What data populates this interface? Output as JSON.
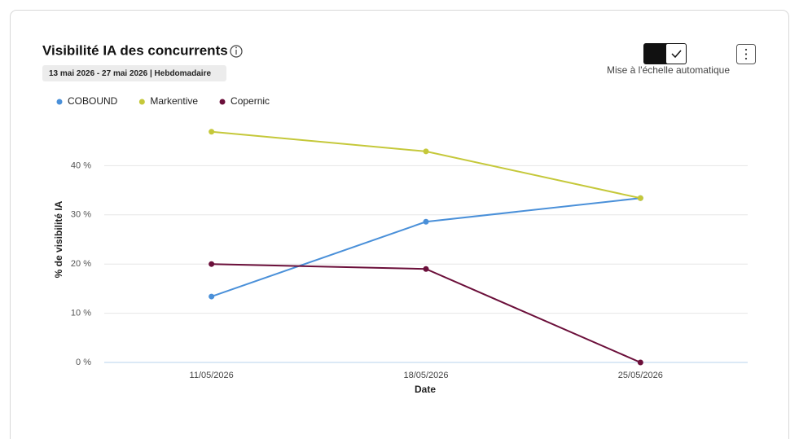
{
  "card": {
    "date_range": "13 mai 2026 - 27 mai 2026 | Hebdomadaire",
    "toggle_label": "Mise à l'échelle automatique"
  },
  "chart_data": {
    "type": "line",
    "title": "Visibilité IA des concurrents",
    "xlabel": "Date",
    "ylabel": "% de visibilité IA",
    "categories": [
      "11/05/2026",
      "18/05/2026",
      "25/05/2026"
    ],
    "series": [
      {
        "name": "COBOUND",
        "color": "#4a90d9",
        "values": [
          13.4,
          28.6,
          33.4
        ]
      },
      {
        "name": "Markentive",
        "color": "#c5c83a",
        "values": [
          46.9,
          42.9,
          33.4
        ]
      },
      {
        "name": "Copernic",
        "color": "#6b0f3a",
        "values": [
          20.0,
          19.0,
          0
        ]
      }
    ],
    "ylim": [
      0,
      50
    ],
    "yticks": [
      {
        "value": 0,
        "label": "0 %"
      },
      {
        "value": 10,
        "label": "10 %"
      },
      {
        "value": 20,
        "label": "20 %"
      },
      {
        "value": 30,
        "label": "30 %"
      },
      {
        "value": 40,
        "label": "40 %"
      }
    ],
    "grid": true,
    "legend": "top-left"
  }
}
